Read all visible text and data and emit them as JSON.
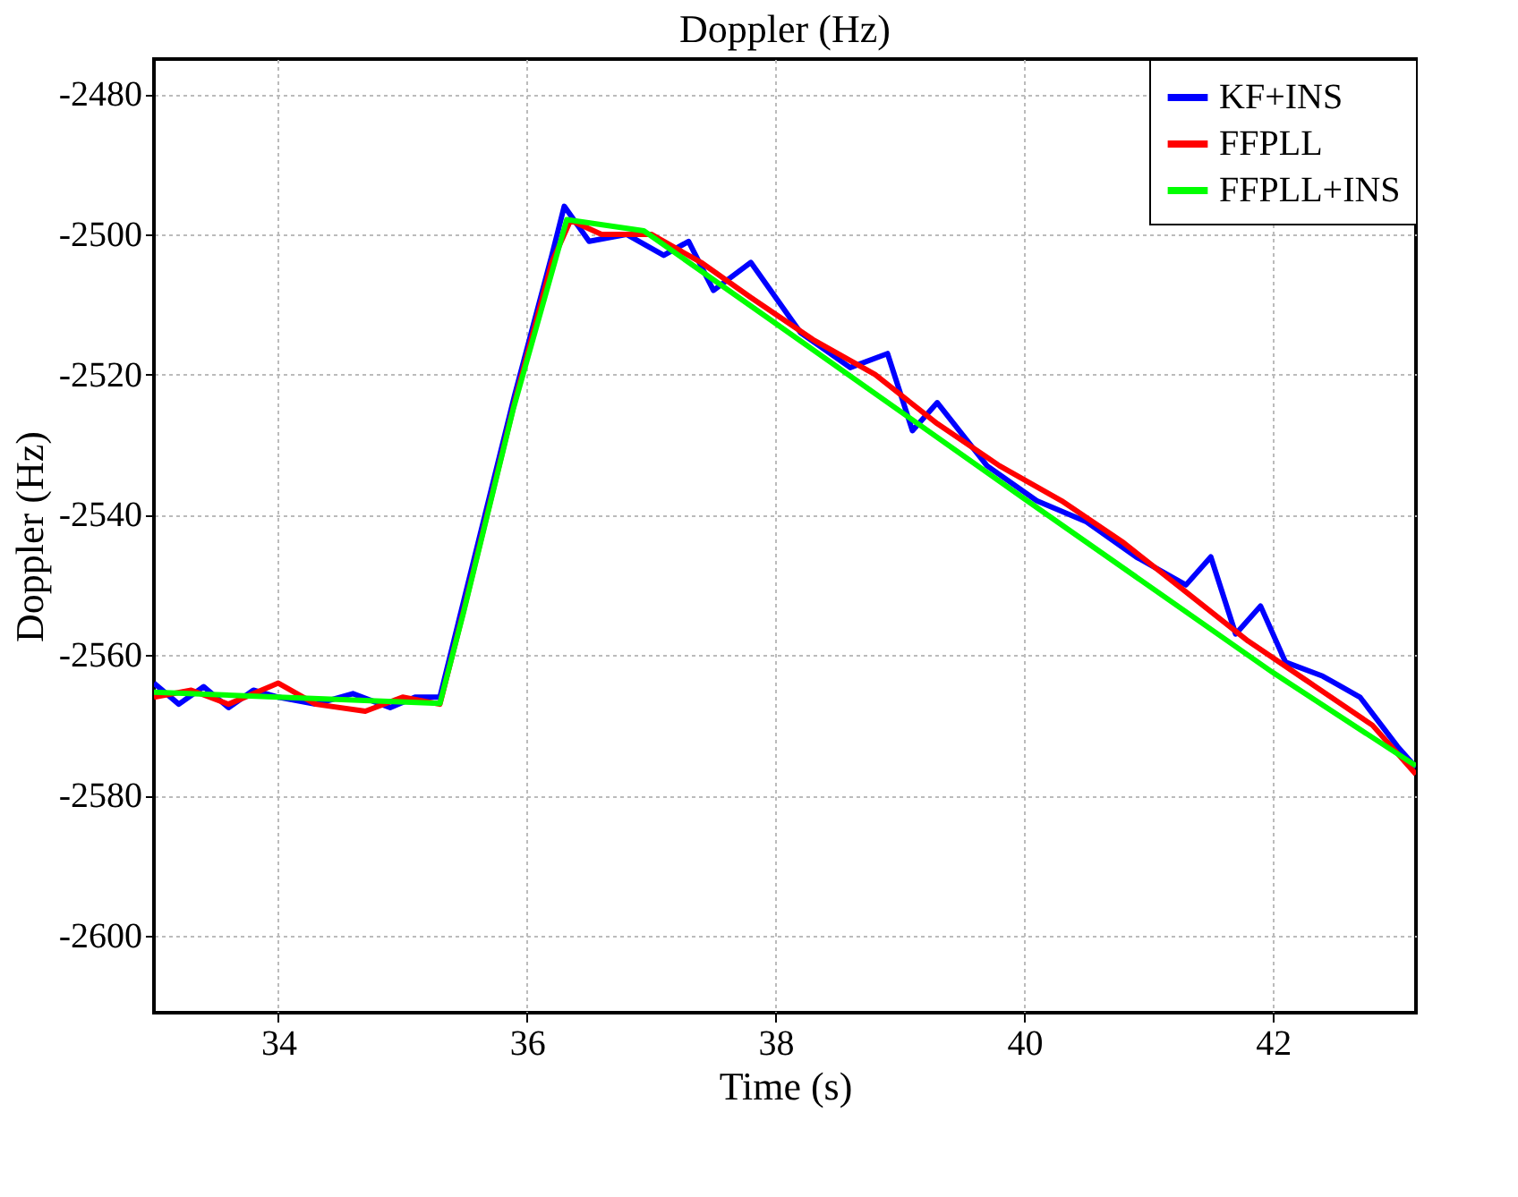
{
  "chart_data": {
    "type": "line",
    "title": "Doppler (Hz)",
    "xlabel": "Time (s)",
    "ylabel": "Doppler (Hz)",
    "xlim": [
      33,
      43.15
    ],
    "ylim": [
      -2611,
      -2475
    ],
    "xticks": [
      34,
      36,
      38,
      40,
      42
    ],
    "yticks": [
      -2480,
      -2500,
      -2520,
      -2540,
      -2560,
      -2580,
      -2600
    ],
    "grid": true,
    "legend": "top right",
    "line_style": "solid",
    "marker": "none",
    "series": [
      {
        "name": "KF+INS",
        "color": "#0000ff",
        "x": [
          33,
          33.2,
          33.4,
          33.6,
          33.8,
          34.0,
          34.3,
          34.6,
          34.9,
          35.1,
          35.3,
          35.9,
          36.2,
          36.3,
          36.5,
          36.8,
          37.1,
          37.3,
          37.5,
          37.8,
          38.2,
          38.6,
          38.9,
          39.1,
          39.3,
          39.7,
          40.1,
          40.5,
          40.9,
          41.3,
          41.5,
          41.7,
          41.9,
          42.1,
          42.4,
          42.7,
          43.0,
          43.15
        ],
        "values": [
          -2564,
          -2567,
          -2564.5,
          -2567.5,
          -2565,
          -2566,
          -2567,
          -2565.5,
          -2567.5,
          -2566,
          -2566,
          -2523,
          -2503,
          -2496,
          -2501,
          -2500,
          -2503,
          -2501,
          -2508,
          -2504,
          -2514,
          -2519,
          -2517,
          -2528,
          -2524,
          -2533,
          -2538,
          -2541,
          -2546,
          -2550,
          -2546,
          -2557,
          -2553,
          -2561,
          -2563,
          -2566,
          -2573,
          -2576
        ]
      },
      {
        "name": "FFPLL",
        "color": "#ff0000",
        "x": [
          33,
          33.3,
          33.6,
          34.0,
          34.3,
          34.7,
          35.0,
          35.3,
          35.5,
          35.9,
          36.2,
          36.35,
          36.6,
          37.0,
          37.4,
          37.8,
          38.3,
          38.8,
          39.3,
          39.8,
          40.3,
          40.8,
          41.3,
          41.8,
          42.3,
          42.8,
          43.15
        ],
        "values": [
          -2566,
          -2565,
          -2567,
          -2564,
          -2567,
          -2568,
          -2566,
          -2567,
          -2553,
          -2524,
          -2504,
          -2498,
          -2500,
          -2500,
          -2504,
          -2509,
          -2515,
          -2520,
          -2527,
          -2533,
          -2538,
          -2544,
          -2551,
          -2558,
          -2564,
          -2570,
          -2577
        ]
      },
      {
        "name": "FFPLL+INS",
        "color": "#00ff00",
        "x": [
          33,
          34,
          35.3,
          35.49,
          35.89,
          36.32,
          36.94,
          38,
          40,
          42,
          43.15
        ],
        "values": [
          -2565.3,
          -2566,
          -2566.9,
          -2553.9,
          -2524.9,
          -2497.9,
          -2499.5,
          -2512.7,
          -2537.7,
          -2562.5,
          -2575.8
        ]
      }
    ]
  }
}
